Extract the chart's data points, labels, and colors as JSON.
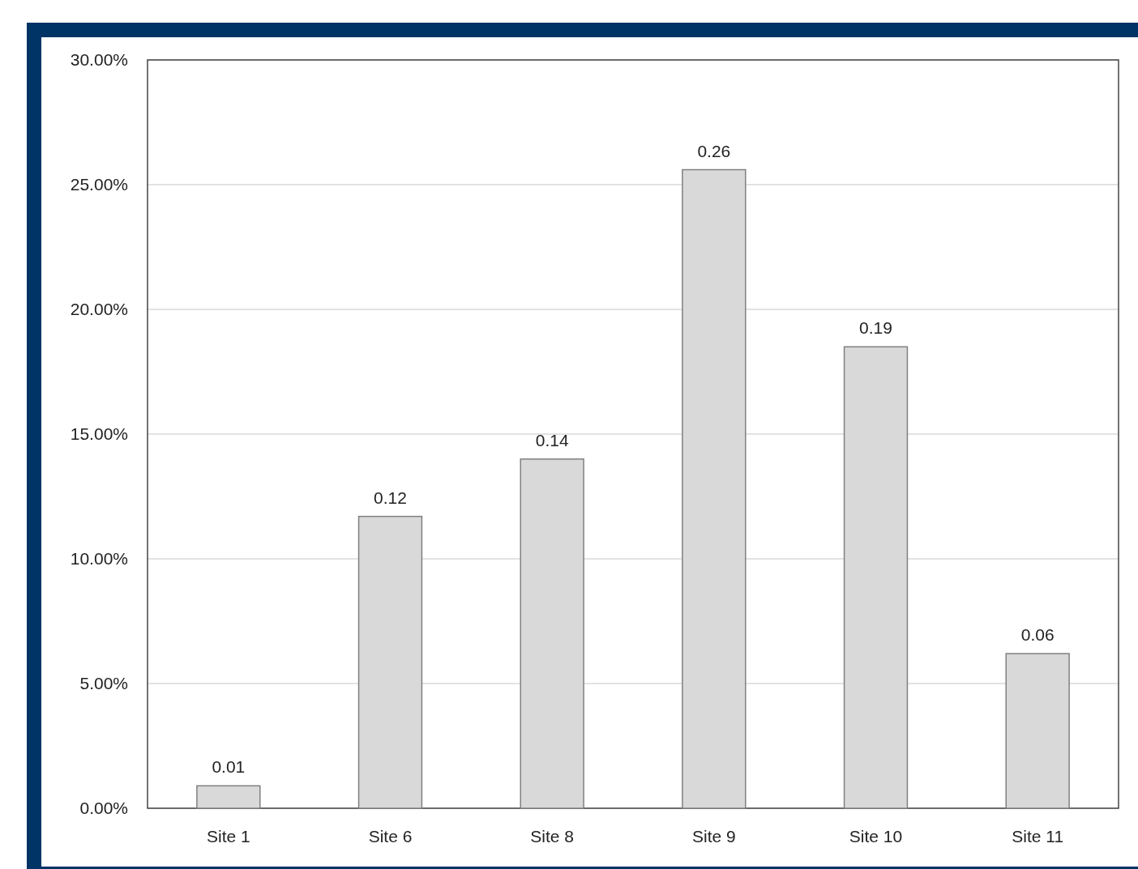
{
  "chart_data": {
    "type": "bar",
    "categories": [
      "Site 1",
      "Site 6",
      "Site 8",
      "Site 9",
      "Site 10",
      "Site 11"
    ],
    "values": [
      0.009,
      0.117,
      0.14,
      0.256,
      0.185,
      0.062
    ],
    "value_labels": [
      "0.01",
      "0.12",
      "0.14",
      "0.26",
      "0.19",
      "0.06"
    ],
    "color": "#d9d9d9",
    "ylim": [
      0,
      0.3
    ],
    "yticks": [
      {
        "value": 0,
        "label": "0.00%"
      },
      {
        "value": 0.05,
        "label": "5.00%"
      },
      {
        "value": 0.1,
        "label": "10.00%"
      },
      {
        "value": 0.15,
        "label": "15.00%"
      },
      {
        "value": 0.2,
        "label": "20.00%"
      },
      {
        "value": 0.25,
        "label": "25.00%"
      },
      {
        "value": 0.3,
        "label": "30.00%"
      }
    ],
    "grid": "y"
  }
}
